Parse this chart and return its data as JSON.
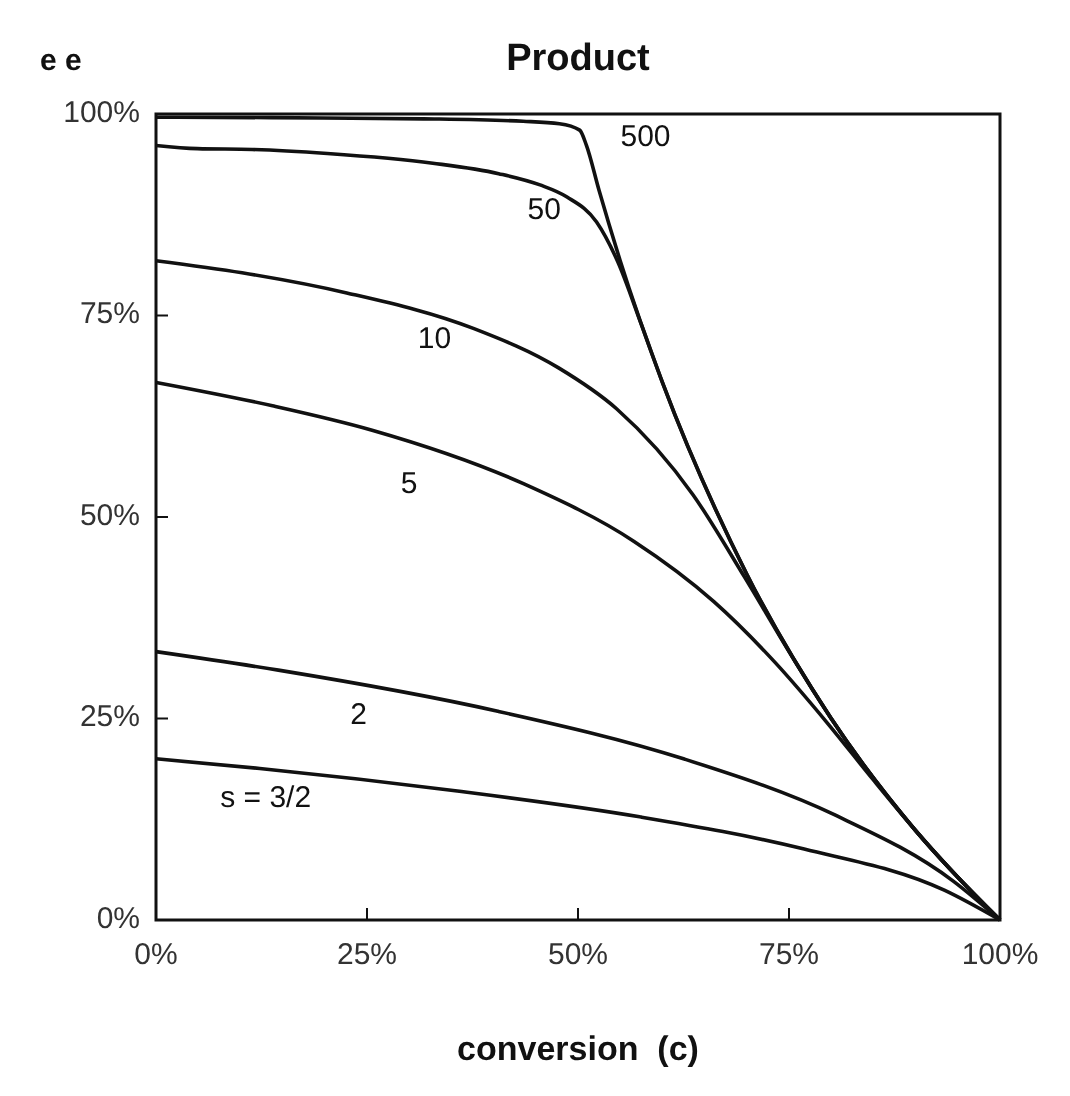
{
  "chart_data": {
    "type": "line",
    "title": "Product",
    "xlabel": "conversion  (c)",
    "ylabel": "e e",
    "xlim": [
      0,
      100
    ],
    "ylim": [
      0,
      100
    ],
    "xticks": [
      {
        "value": 0,
        "label": "0%"
      },
      {
        "value": 25,
        "label": "25%"
      },
      {
        "value": 50,
        "label": "50%"
      },
      {
        "value": 75,
        "label": "75%"
      },
      {
        "value": 100,
        "label": "100%"
      }
    ],
    "yticks": [
      {
        "value": 0,
        "label": "0%"
      },
      {
        "value": 25,
        "label": "25%"
      },
      {
        "value": 50,
        "label": "50%"
      },
      {
        "value": 75,
        "label": "75%"
      },
      {
        "value": 100,
        "label": "100%"
      }
    ],
    "grid": false,
    "legend": false,
    "marker": "none",
    "line_style": "solid",
    "series": [
      {
        "name": "500",
        "color": "#111111",
        "x": [
          0,
          2.4,
          19.7,
          31.7,
          43.5,
          47.8,
          50.2,
          51,
          52.5,
          55,
          60,
          70,
          80,
          90,
          100
        ],
        "values": [
          99.6,
          99.6,
          99.5,
          99.4,
          99.1,
          98.8,
          98,
          96.1,
          90.5,
          81.8,
          66.7,
          42.9,
          25,
          11.1,
          0
        ]
      },
      {
        "name": "50",
        "color": "#111111",
        "x": [
          0,
          4.9,
          11.4,
          20.3,
          32.8,
          40.6,
          45.5,
          48.7,
          52.2,
          54.7,
          57.5,
          60,
          70,
          80,
          90,
          100
        ],
        "values": [
          96.1,
          95.7,
          95.6,
          95.1,
          93.9,
          92.6,
          91.2,
          89.7,
          86.6,
          81.7,
          73.9,
          66.7,
          42.9,
          25,
          11.1,
          0
        ]
      },
      {
        "name": "10",
        "color": "#111111",
        "x": [
          0,
          10.2,
          22.6,
          37.6,
          47.7,
          54.6,
          63.6,
          69.7,
          75,
          80,
          85,
          90,
          95,
          100
        ],
        "values": [
          81.8,
          80.3,
          77.8,
          73.4,
          68.5,
          63.4,
          52.8,
          42.6,
          33.3,
          25,
          17.6,
          11.1,
          5.3,
          0
        ]
      },
      {
        "name": "5",
        "color": "#111111",
        "x": [
          0,
          13.8,
          25.5,
          43.6,
          56.6,
          66.1,
          73.4,
          79.5,
          84.9,
          90,
          95,
          100
        ],
        "values": [
          66.7,
          63.8,
          60.8,
          54.1,
          47,
          39.5,
          31.9,
          24.5,
          17.5,
          11.1,
          5.3,
          0
        ]
      },
      {
        "name": "2",
        "color": "#111111",
        "x": [
          0,
          14.5,
          40.5,
          62.5,
          80.5,
          94.5,
          100
        ],
        "values": [
          33.3,
          31,
          25.9,
          20,
          13,
          4.8,
          0
        ]
      },
      {
        "name": "s = 3/2",
        "color": "#111111",
        "x": [
          0,
          12.3,
          35.7,
          57.3,
          76.8,
          93.4,
          100
        ],
        "values": [
          20,
          18.8,
          16,
          12.8,
          8.8,
          3.7,
          0
        ]
      }
    ]
  }
}
